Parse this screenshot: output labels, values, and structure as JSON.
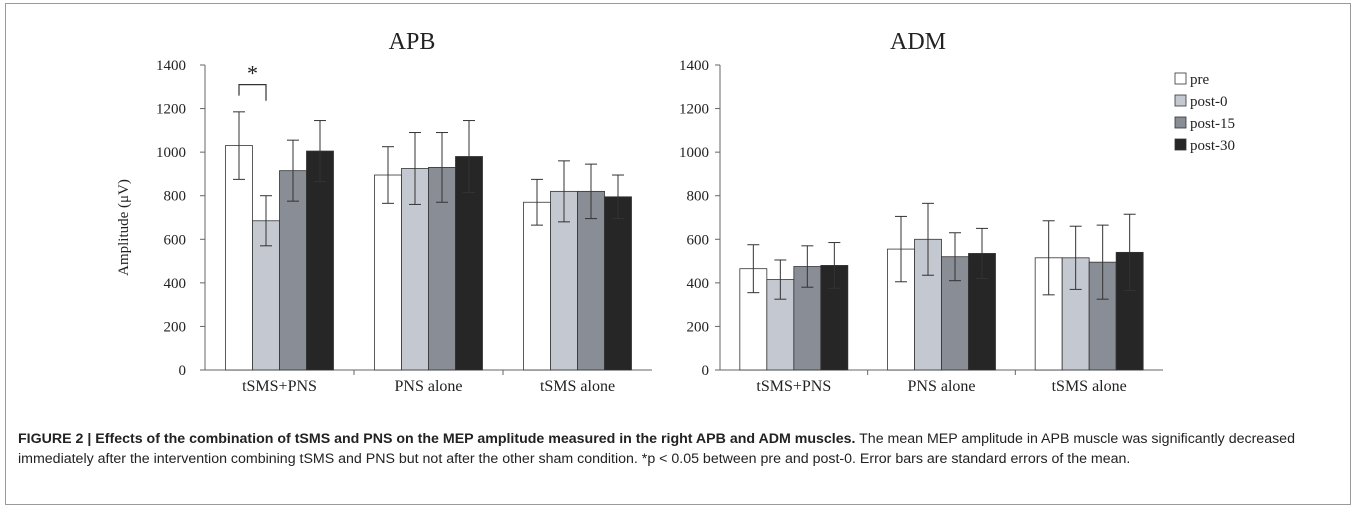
{
  "chart_data": [
    {
      "type": "bar",
      "title": "APB",
      "ylabel": "Amplitude (μV)",
      "ylim": [
        0,
        1400
      ],
      "yticks": [
        "0",
        "200",
        "400",
        "600",
        "800",
        "1000",
        "1200",
        "1400"
      ],
      "categories": [
        "tSMS+PNS",
        "PNS alone",
        "tSMS alone"
      ],
      "series": [
        {
          "name": "pre",
          "values": [
            1030,
            895,
            770
          ],
          "errors": [
            155,
            130,
            105
          ]
        },
        {
          "name": "post-0",
          "values": [
            685,
            925,
            820
          ],
          "errors": [
            115,
            165,
            140
          ]
        },
        {
          "name": "post-15",
          "values": [
            915,
            930,
            820
          ],
          "errors": [
            140,
            160,
            125
          ]
        },
        {
          "name": "post-30",
          "values": [
            1005,
            980,
            795
          ],
          "errors": [
            140,
            165,
            100
          ]
        }
      ],
      "annotation": {
        "text": "*",
        "between": [
          "pre",
          "post-0"
        ],
        "category": "tSMS+PNS"
      },
      "grid": false
    },
    {
      "type": "bar",
      "title": "ADM",
      "ylim": [
        0,
        1400
      ],
      "yticks": [
        "0",
        "200",
        "400",
        "600",
        "800",
        "1000",
        "1200",
        "1400"
      ],
      "categories": [
        "tSMS+PNS",
        "PNS alone",
        "tSMS alone"
      ],
      "series": [
        {
          "name": "pre",
          "values": [
            465,
            555,
            515
          ],
          "errors": [
            110,
            150,
            170
          ]
        },
        {
          "name": "post-0",
          "values": [
            415,
            600,
            515
          ],
          "errors": [
            90,
            165,
            145
          ]
        },
        {
          "name": "post-15",
          "values": [
            475,
            520,
            495
          ],
          "errors": [
            95,
            110,
            170
          ]
        },
        {
          "name": "post-30",
          "values": [
            480,
            535,
            540
          ],
          "errors": [
            105,
            115,
            175
          ]
        }
      ],
      "legend": {
        "placement": "top-right",
        "labels": [
          "pre",
          "post-0",
          "post-15",
          "post-30"
        ]
      },
      "grid": false
    }
  ],
  "colors": {
    "pre": "#ffffff",
    "post-0": "#c4c8d0",
    "post-15": "#898d95",
    "post-30": "#262626",
    "axis": "#666666",
    "text": "#222222"
  },
  "caption": {
    "bold": "FIGURE 2 | Effects of the combination of tSMS and PNS on the MEP amplitude measured in the right APB and ADM muscles.",
    "text": " The mean MEP amplitude in APB muscle was significantly decreased immediately after the intervention combining tSMS and PNS but not after the other sham condition. *p < 0.05 between pre and post-0. Error bars are standard errors of the mean."
  }
}
